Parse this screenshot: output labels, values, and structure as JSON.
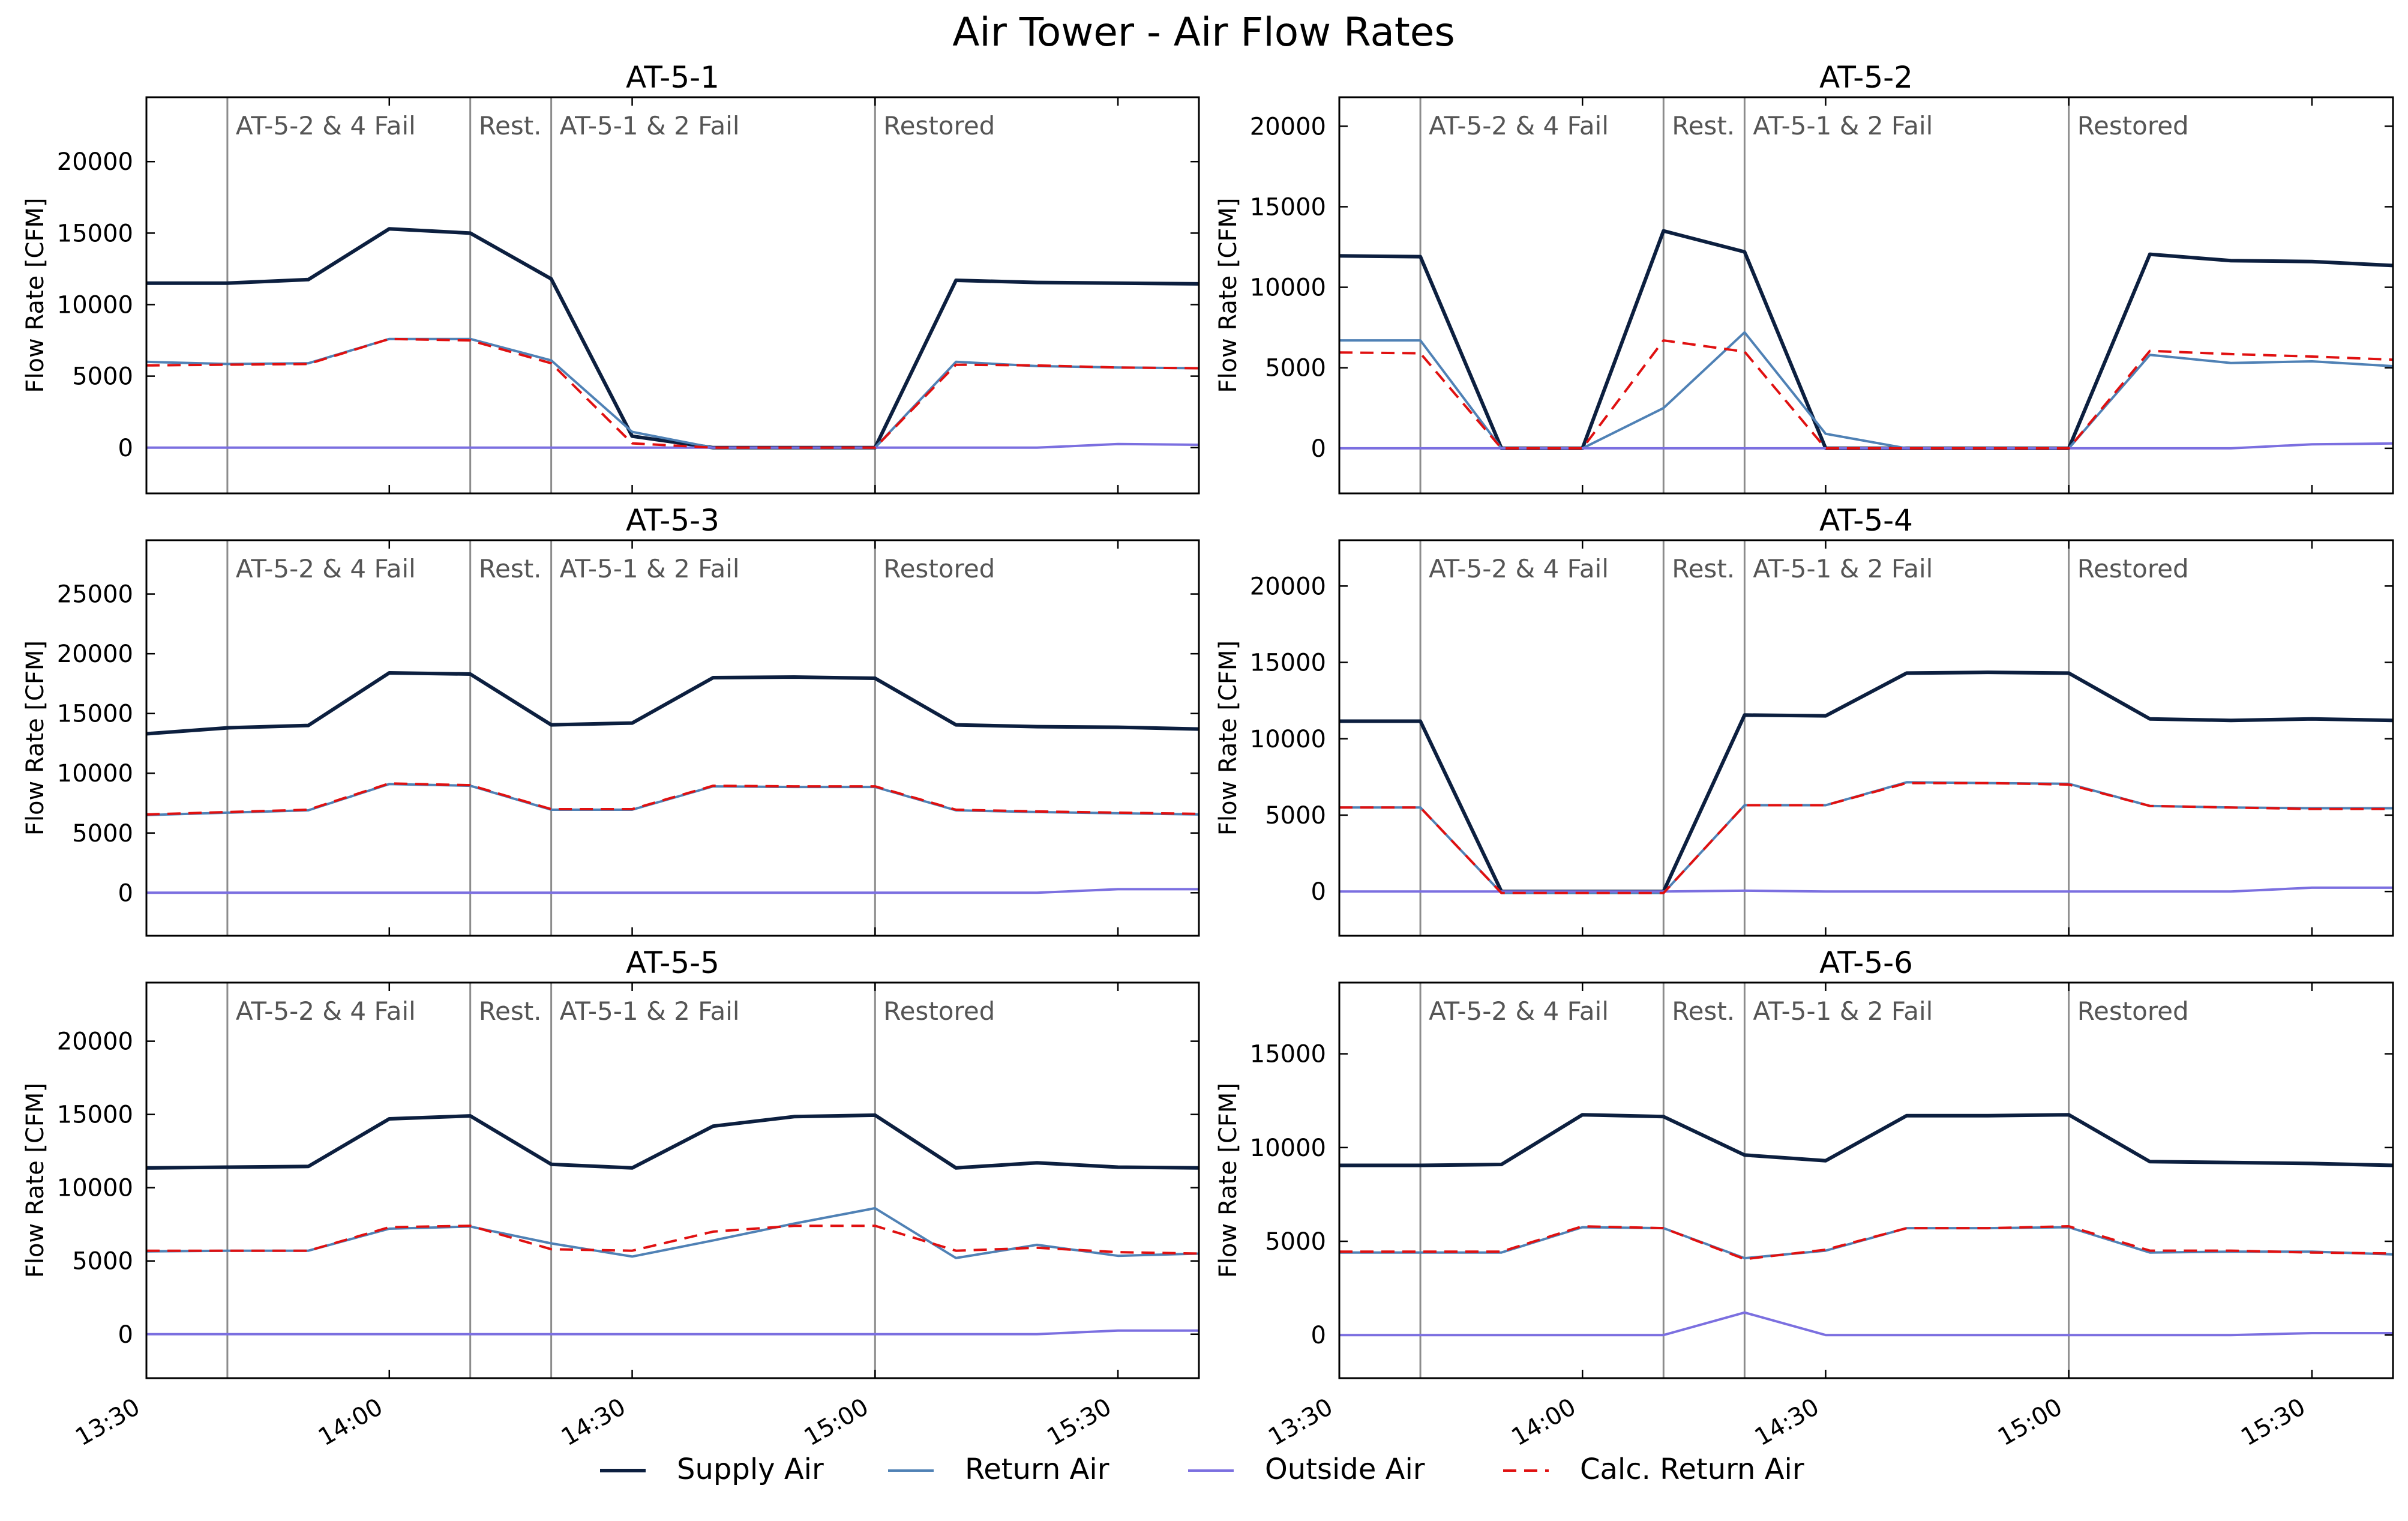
{
  "title": "Air Tower - Air Flow Rates",
  "ylabel": "Flow Rate [CFM]",
  "x_tick_labels": [
    "13:30",
    "14:00",
    "14:30",
    "15:00",
    "15:30"
  ],
  "event_labels": [
    "AT-5-2 & 4 Fail",
    "Rest.",
    "AT-5-1 & 2 Fail",
    "Restored"
  ],
  "legend": [
    {
      "label": "Supply Air",
      "color": "#0c1f3f",
      "dash": false
    },
    {
      "label": "Return Air",
      "color": "#4f81b5",
      "dash": false
    },
    {
      "label": "Outside Air",
      "color": "#7b6fe0",
      "dash": false
    },
    {
      "label": "Calc. Return Air",
      "color": "#e01010",
      "dash": true
    }
  ],
  "chart_data": [
    {
      "type": "line",
      "title": "AT-5-1",
      "x": [
        "13:30",
        "13:40",
        "13:50",
        "14:00",
        "14:10",
        "14:20",
        "14:30",
        "14:40",
        "14:50",
        "15:00",
        "15:10",
        "15:20",
        "15:30",
        "15:40"
      ],
      "ylim": [
        -3200,
        24500
      ],
      "yticks": [
        0,
        5000,
        10000,
        15000,
        20000
      ],
      "event_lines": [
        "13:40",
        "14:10",
        "14:20",
        "15:00"
      ],
      "series": [
        {
          "name": "Supply Air",
          "values": [
            11500,
            11500,
            11750,
            15300,
            15000,
            11800,
            800,
            0,
            0,
            0,
            11700,
            11550,
            11500,
            11450
          ]
        },
        {
          "name": "Return Air",
          "values": [
            6000,
            5850,
            5900,
            7600,
            7600,
            6100,
            1100,
            0,
            0,
            0,
            6000,
            5700,
            5600,
            5550
          ]
        },
        {
          "name": "Outside Air",
          "values": [
            0,
            0,
            0,
            0,
            0,
            0,
            0,
            0,
            0,
            0,
            0,
            0,
            250,
            200
          ]
        },
        {
          "name": "Calc. Return Air",
          "values": [
            5750,
            5800,
            5850,
            7600,
            7500,
            5900,
            300,
            0,
            0,
            0,
            5800,
            5750,
            5600,
            5550
          ]
        }
      ]
    },
    {
      "type": "line",
      "title": "AT-5-2",
      "x": [
        "13:30",
        "13:40",
        "13:50",
        "14:00",
        "14:10",
        "14:20",
        "14:30",
        "14:40",
        "14:50",
        "15:00",
        "15:10",
        "15:20",
        "15:30",
        "15:40"
      ],
      "ylim": [
        -2800,
        21800
      ],
      "yticks": [
        0,
        5000,
        10000,
        15000,
        20000
      ],
      "event_lines": [
        "13:40",
        "14:10",
        "14:20",
        "15:00"
      ],
      "series": [
        {
          "name": "Supply Air",
          "values": [
            11950,
            11900,
            0,
            0,
            13500,
            12200,
            0,
            0,
            0,
            0,
            12050,
            11650,
            11600,
            11350
          ]
        },
        {
          "name": "Return Air",
          "values": [
            6700,
            6700,
            0,
            0,
            2500,
            7200,
            900,
            0,
            0,
            0,
            5800,
            5300,
            5400,
            5100
          ]
        },
        {
          "name": "Outside Air",
          "values": [
            0,
            0,
            0,
            0,
            0,
            0,
            0,
            0,
            0,
            0,
            0,
            0,
            250,
            300
          ]
        },
        {
          "name": "Calc. Return Air",
          "values": [
            5950,
            5900,
            0,
            0,
            6700,
            6000,
            0,
            0,
            0,
            0,
            6050,
            5850,
            5700,
            5500
          ]
        }
      ]
    },
    {
      "type": "line",
      "title": "AT-5-3",
      "x": [
        "13:30",
        "13:40",
        "13:50",
        "14:00",
        "14:10",
        "14:20",
        "14:30",
        "14:40",
        "14:50",
        "15:00",
        "15:10",
        "15:20",
        "15:30",
        "15:40"
      ],
      "ylim": [
        -3600,
        29500
      ],
      "yticks": [
        0,
        5000,
        10000,
        15000,
        20000,
        25000
      ],
      "event_lines": [
        "13:40",
        "14:10",
        "14:20",
        "15:00"
      ],
      "series": [
        {
          "name": "Supply Air",
          "values": [
            13300,
            13800,
            14000,
            18400,
            18300,
            14050,
            14200,
            18000,
            18050,
            17950,
            14050,
            13900,
            13850,
            13700
          ]
        },
        {
          "name": "Return Air",
          "values": [
            6500,
            6700,
            6900,
            9100,
            8950,
            6950,
            6950,
            8900,
            8850,
            8850,
            6900,
            6750,
            6650,
            6550
          ]
        },
        {
          "name": "Outside Air",
          "values": [
            0,
            0,
            0,
            0,
            0,
            0,
            0,
            0,
            0,
            0,
            0,
            0,
            300,
            300
          ]
        },
        {
          "name": "Calc. Return Air",
          "values": [
            6550,
            6750,
            6950,
            9150,
            9000,
            7000,
            7000,
            8950,
            8900,
            8900,
            6950,
            6800,
            6700,
            6600
          ]
        }
      ]
    },
    {
      "type": "line",
      "title": "AT-5-4",
      "x": [
        "13:30",
        "13:40",
        "13:50",
        "14:00",
        "14:10",
        "14:20",
        "14:30",
        "14:40",
        "14:50",
        "15:00",
        "15:10",
        "15:20",
        "15:30",
        "15:40"
      ],
      "ylim": [
        -2900,
        23000
      ],
      "yticks": [
        0,
        5000,
        10000,
        15000,
        20000
      ],
      "event_lines": [
        "13:40",
        "14:10",
        "14:20",
        "15:00"
      ],
      "series": [
        {
          "name": "Supply Air",
          "values": [
            11150,
            11150,
            0,
            0,
            0,
            11550,
            11500,
            14300,
            14350,
            14300,
            11300,
            11200,
            11300,
            11200
          ]
        },
        {
          "name": "Return Air",
          "values": [
            5500,
            5500,
            -100,
            -100,
            -100,
            5650,
            5650,
            7150,
            7100,
            7050,
            5600,
            5500,
            5450,
            5450
          ]
        },
        {
          "name": "Outside Air",
          "values": [
            0,
            0,
            0,
            0,
            0,
            50,
            0,
            0,
            0,
            0,
            0,
            0,
            250,
            250
          ]
        },
        {
          "name": "Calc. Return Air",
          "values": [
            5500,
            5500,
            -100,
            -100,
            -100,
            5650,
            5650,
            7100,
            7100,
            7000,
            5600,
            5500,
            5400,
            5400
          ]
        }
      ]
    },
    {
      "type": "line",
      "title": "AT-5-5",
      "x": [
        "13:30",
        "13:40",
        "13:50",
        "14:00",
        "14:10",
        "14:20",
        "14:30",
        "14:40",
        "14:50",
        "15:00",
        "15:10",
        "15:20",
        "15:30",
        "15:40"
      ],
      "ylim": [
        -3000,
        24000
      ],
      "yticks": [
        0,
        5000,
        10000,
        15000,
        20000
      ],
      "event_lines": [
        "13:40",
        "14:10",
        "14:20",
        "15:00"
      ],
      "series": [
        {
          "name": "Supply Air",
          "values": [
            11350,
            11400,
            11450,
            14700,
            14900,
            11600,
            11350,
            14200,
            14850,
            14950,
            11350,
            11700,
            11400,
            11350
          ]
        },
        {
          "name": "Return Air",
          "values": [
            5650,
            5700,
            5700,
            7200,
            7350,
            6200,
            5300,
            6400,
            7550,
            8600,
            5200,
            6100,
            5350,
            5500
          ]
        },
        {
          "name": "Outside Air",
          "values": [
            0,
            0,
            0,
            0,
            0,
            0,
            0,
            0,
            0,
            0,
            0,
            0,
            250,
            250
          ]
        },
        {
          "name": "Calc. Return Air",
          "values": [
            5700,
            5700,
            5700,
            7300,
            7400,
            5800,
            5700,
            7000,
            7400,
            7400,
            5700,
            5900,
            5600,
            5500
          ]
        }
      ]
    },
    {
      "type": "line",
      "title": "AT-5-6",
      "x": [
        "13:30",
        "13:40",
        "13:50",
        "14:00",
        "14:10",
        "14:20",
        "14:30",
        "14:40",
        "14:50",
        "15:00",
        "15:10",
        "15:20",
        "15:30",
        "15:40"
      ],
      "ylim": [
        -2300,
        18800
      ],
      "yticks": [
        0,
        5000,
        10000,
        15000
      ],
      "event_lines": [
        "13:40",
        "14:10",
        "14:20",
        "15:00"
      ],
      "series": [
        {
          "name": "Supply Air",
          "values": [
            9050,
            9050,
            9100,
            11750,
            11650,
            9600,
            9300,
            11700,
            11700,
            11750,
            9250,
            9200,
            9150,
            9050
          ]
        },
        {
          "name": "Return Air",
          "values": [
            4400,
            4400,
            4400,
            5750,
            5700,
            4100,
            4500,
            5700,
            5700,
            5750,
            4400,
            4450,
            4450,
            4300
          ]
        },
        {
          "name": "Outside Air",
          "values": [
            0,
            0,
            0,
            0,
            0,
            1200,
            0,
            0,
            0,
            0,
            0,
            0,
            100,
            100
          ]
        },
        {
          "name": "Calc. Return Air",
          "values": [
            4450,
            4450,
            4450,
            5800,
            5700,
            4050,
            4550,
            5700,
            5700,
            5800,
            4500,
            4500,
            4400,
            4350
          ]
        }
      ]
    }
  ]
}
